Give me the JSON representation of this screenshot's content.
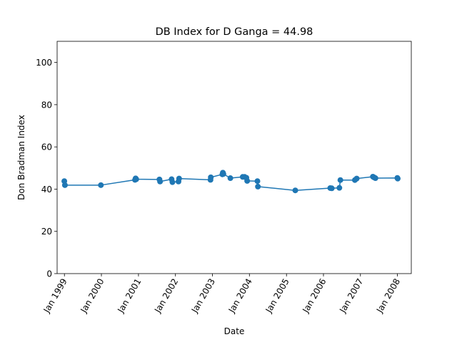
{
  "chart_data": {
    "type": "line",
    "title": "DB Index for D Ganga = 44.98",
    "xlabel": "Date",
    "ylabel": "Don Bradman Index",
    "ylim": [
      0,
      110
    ],
    "yticks": [
      0,
      20,
      40,
      60,
      80,
      100
    ],
    "xlim": [
      "1998-10-21",
      "2008-05-17"
    ],
    "xticks": [
      {
        "date": "1999-01-01",
        "label": "Jan 1999"
      },
      {
        "date": "2000-01-01",
        "label": "Jan 2000"
      },
      {
        "date": "2001-01-01",
        "label": "Jan 2001"
      },
      {
        "date": "2002-01-01",
        "label": "Jan 2002"
      },
      {
        "date": "2003-01-01",
        "label": "Jan 2003"
      },
      {
        "date": "2004-01-01",
        "label": "Jan 2004"
      },
      {
        "date": "2005-01-01",
        "label": "Jan 2005"
      },
      {
        "date": "2006-01-01",
        "label": "Jan 2006"
      },
      {
        "date": "2007-01-01",
        "label": "Jan 2007"
      },
      {
        "date": "2008-01-01",
        "label": "Jan 2008"
      }
    ],
    "grid": false,
    "color": "#1f77b4",
    "series": [
      {
        "x": [
          "1998-12-31",
          "1999-01-06",
          "1999-12-27",
          "2000-11-28",
          "2000-12-04",
          "2000-12-10",
          "2001-07-27",
          "2001-08-02",
          "2001-11-24",
          "2001-12-02",
          "2002-01-31",
          "2002-02-06",
          "2002-12-13",
          "2002-12-16",
          "2003-04-09",
          "2003-04-14",
          "2003-04-19",
          "2003-06-27",
          "2003-10-27",
          "2003-11-15",
          "2003-12-02",
          "2003-12-10",
          "2004-03-20",
          "2004-03-25",
          "2005-03-29",
          "2006-03-09",
          "2006-03-24",
          "2006-06-07",
          "2006-06-17",
          "2006-11-07",
          "2006-11-25",
          "2007-05-04",
          "2007-05-14",
          "2007-05-29",
          "2007-12-31",
          "2008-01-04"
        ],
        "y": [
          43.8,
          41.9,
          41.9,
          44.4,
          45.1,
          44.7,
          44.6,
          43.6,
          44.7,
          43.3,
          43.6,
          45.0,
          44.4,
          45.6,
          47.0,
          47.8,
          47.2,
          45.2,
          45.8,
          45.8,
          45.4,
          43.9,
          43.8,
          41.2,
          39.4,
          40.5,
          40.4,
          40.6,
          44.3,
          44.3,
          45.0,
          45.9,
          45.6,
          45.2,
          45.3,
          45.0
        ]
      }
    ]
  }
}
